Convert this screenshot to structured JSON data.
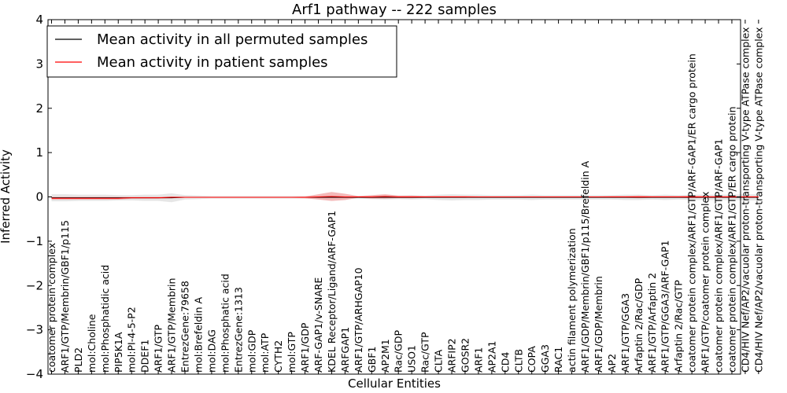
{
  "chart_data": {
    "type": "line",
    "title": "Arf1 pathway -- 222 samples",
    "xlabel": "Cellular Entities",
    "ylabel": "Inferred Activity",
    "ylim": [
      -4,
      4
    ],
    "yticks": [
      -4,
      -3,
      -2,
      -1,
      0,
      1,
      2,
      3,
      4
    ],
    "ytick_labels": [
      "−4",
      "−3",
      "−2",
      "−1",
      "0",
      "1",
      "2",
      "3",
      "4"
    ],
    "legend_position": "top-left",
    "categories": [
      "coatomer protein complex",
      "ARF1/GTP/Membrin/GBF1/p115",
      "PLD2",
      "mol:Choline",
      "mol:Phosphatidic acid",
      "PIP5K1A",
      "mol:PI-4-5-P2",
      "DDEF1",
      "ARF1/GTP",
      "ARF1/GTP/Membrin",
      "EntrezGene:79658",
      "mol:Brefeldin A",
      "mol:DAG",
      "mol:Phosphatic acid",
      "EntrezGene:1313",
      "mol:GDP",
      "mol:ATP",
      "CYTH2",
      "mol:GTP",
      "ARF1/GDP",
      "ARF-GAP1/v-SNARE",
      "KDEL Receptor/Ligand/ARF-GAP1",
      "ARFGAP1",
      "ARF1/GTP/ARHGAP10",
      "GBF1",
      "AP2M1",
      "Rac/GDP",
      "USO1",
      "Rac/GTP",
      "CLTA",
      "ARFIP2",
      "GOSR2",
      "ARF1",
      "AP2A1",
      "CD4",
      "CLTB",
      "COPA",
      "GGA3",
      "RAC1",
      "actin filament polymerization",
      "ARF1/GDP/Membrin/GBF1/p115/Brefeldin A",
      "ARF1/GDP/Membrin",
      "AP2",
      "ARF1/GTP/GGA3",
      "Arfaptin 2/Rac/GDP",
      "ARF1/GTP/Arfaptin 2",
      "ARF1/GTP/GGA3/ARF-GAP1",
      "Arfaptin 2/Rac/GTP",
      "coatomer protein complex/ARF1/GTP/ARF-GAP1/ER cargo protein",
      "ARF1/GTP/coatomer protein complex",
      "coatomer protein complex/ARF1/GTP/ARF-GAP1",
      "coatomer protein complex/ARF1/GTP/ER cargo protein",
      "CD4/HIV Nef/AP2/vacuolar proton-transporting V-type ATPase complex",
      "CD4/HIV Nef/AP2/vacuolar proton-transporting V-type ATPase complex"
    ],
    "series": [
      {
        "name": "Mean activity in all permuted samples",
        "color": "#000000",
        "values": [
          -0.02,
          -0.02,
          -0.02,
          -0.02,
          -0.02,
          -0.02,
          -0.02,
          -0.02,
          -0.02,
          -0.02,
          -0.01,
          -0.01,
          -0.01,
          -0.01,
          -0.01,
          -0.01,
          -0.01,
          -0.01,
          -0.01,
          -0.01,
          -0.01,
          -0.01,
          -0.01,
          -0.01,
          -0.01,
          -0.01,
          -0.01,
          -0.01,
          -0.01,
          -0.01,
          -0.01,
          -0.01,
          -0.01,
          -0.01,
          -0.01,
          -0.01,
          -0.01,
          -0.01,
          -0.01,
          -0.01,
          -0.01,
          -0.01,
          -0.01,
          -0.01,
          -0.01,
          -0.01,
          -0.01,
          -0.01,
          -0.01,
          -0.01,
          -0.01,
          -0.01,
          -0.01,
          -0.01
        ],
        "band": [
          0.08,
          0.08,
          0.07,
          0.07,
          0.07,
          0.06,
          0.06,
          0.07,
          0.07,
          0.1,
          0.05,
          0.04,
          0.03,
          0.03,
          0.03,
          0.03,
          0.03,
          0.03,
          0.03,
          0.03,
          0.03,
          0.03,
          0.03,
          0.03,
          0.04,
          0.05,
          0.04,
          0.05,
          0.04,
          0.06,
          0.07,
          0.06,
          0.06,
          0.05,
          0.05,
          0.05,
          0.06,
          0.05,
          0.05,
          0.05,
          0.05,
          0.05,
          0.05,
          0.06,
          0.06,
          0.05,
          0.06,
          0.05,
          0.06,
          0.06,
          0.06,
          0.06,
          0.07,
          0.07
        ]
      },
      {
        "name": "Mean activity in patient samples",
        "color": "#ff0000",
        "values": [
          -0.03,
          -0.03,
          -0.03,
          -0.03,
          -0.03,
          -0.03,
          -0.02,
          -0.02,
          -0.02,
          -0.01,
          -0.01,
          -0.01,
          -0.01,
          -0.01,
          -0.01,
          -0.01,
          -0.01,
          -0.01,
          -0.01,
          -0.01,
          0.0,
          0.01,
          0.0,
          0.0,
          0.0,
          0.01,
          0.0,
          0.0,
          0.0,
          0.0,
          0.0,
          0.0,
          0.0,
          0.0,
          0.0,
          0.0,
          0.0,
          0.0,
          0.0,
          0.0,
          0.0,
          0.0,
          0.0,
          0.0,
          0.0,
          0.0,
          0.0,
          0.0,
          0.0,
          0.0,
          0.0,
          0.0,
          0.0,
          0.0
        ],
        "band": [
          0.03,
          0.03,
          0.03,
          0.03,
          0.03,
          0.03,
          0.02,
          0.02,
          0.02,
          0.02,
          0.01,
          0.01,
          0.01,
          0.01,
          0.01,
          0.01,
          0.01,
          0.01,
          0.01,
          0.02,
          0.06,
          0.1,
          0.07,
          0.02,
          0.04,
          0.05,
          0.03,
          0.03,
          0.02,
          0.02,
          0.02,
          0.02,
          0.01,
          0.01,
          0.01,
          0.01,
          0.01,
          0.01,
          0.01,
          0.01,
          0.01,
          0.01,
          0.02,
          0.02,
          0.03,
          0.02,
          0.02,
          0.02,
          0.03,
          0.02,
          0.02,
          0.02,
          0.02,
          0.02
        ]
      }
    ],
    "band_colors": {
      "permuted": "#dddddd",
      "patient": "#f0a0a0"
    },
    "grid": false
  }
}
